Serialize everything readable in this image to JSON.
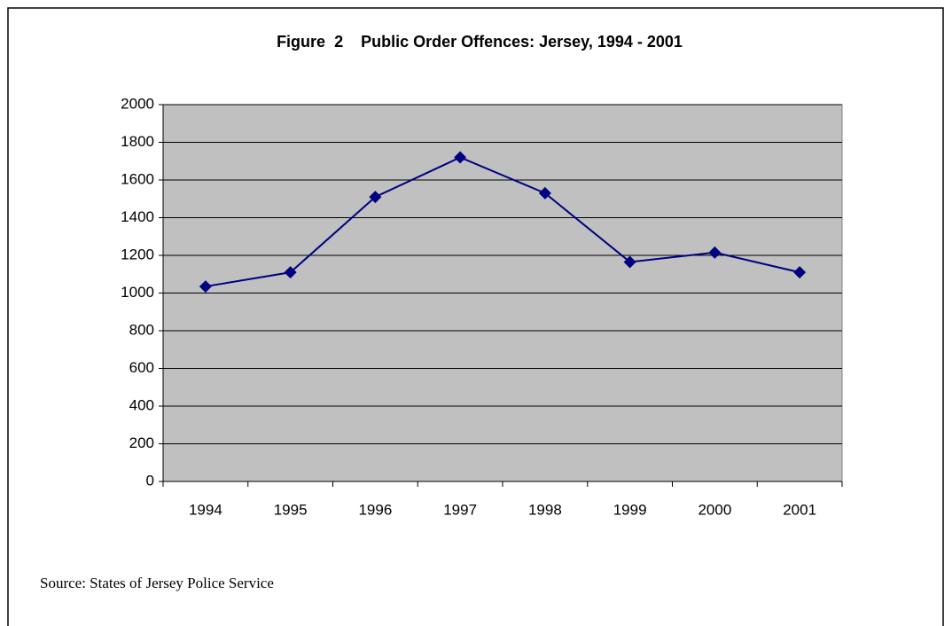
{
  "chart_data": {
    "type": "line",
    "title": "Figure  2    Public Order Offences: Jersey, 1994 - 2001",
    "categories": [
      "1994",
      "1995",
      "1996",
      "1997",
      "1998",
      "1999",
      "2000",
      "2001"
    ],
    "values": [
      1035,
      1110,
      1510,
      1720,
      1530,
      1165,
      1215,
      1110
    ],
    "color": "#000080",
    "ylim": [
      0,
      2000
    ],
    "yticks": [
      0,
      200,
      400,
      600,
      800,
      1000,
      1200,
      1400,
      1600,
      1800,
      2000
    ],
    "grid": true,
    "source": "Source: States of Jersey Police Service"
  }
}
